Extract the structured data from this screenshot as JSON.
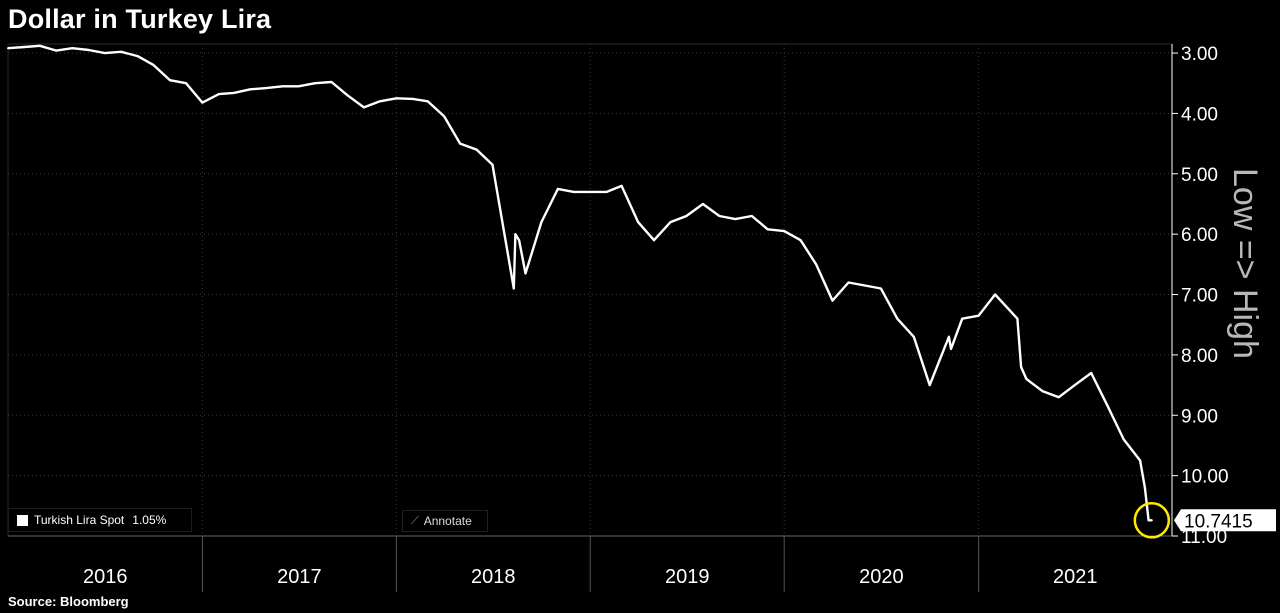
{
  "chart_data": {
    "type": "line",
    "title": "Dollar in Turkey Lira",
    "source": "Source: Bloomberg",
    "series": [
      {
        "name": "Turkish Lira Spot",
        "change": "1.05%",
        "last_value_label": "10.7415",
        "x": [
          "2016-01",
          "2016-02",
          "2016-03",
          "2016-04",
          "2016-05",
          "2016-06",
          "2016-07",
          "2016-08",
          "2016-09",
          "2016-10",
          "2016-11",
          "2016-12",
          "2017-01",
          "2017-02",
          "2017-03",
          "2017-04",
          "2017-05",
          "2017-06",
          "2017-07",
          "2017-08",
          "2017-09",
          "2017-10",
          "2017-11",
          "2017-12",
          "2018-01",
          "2018-02",
          "2018-03",
          "2018-04",
          "2018-05",
          "2018-06",
          "2018-07",
          "2018-08-10",
          "2018-08-13",
          "2018-08-20",
          "2018-09",
          "2018-10",
          "2018-11",
          "2018-12",
          "2019-01",
          "2019-02",
          "2019-03",
          "2019-04",
          "2019-05",
          "2019-06",
          "2019-07",
          "2019-08",
          "2019-09",
          "2019-10",
          "2019-11",
          "2019-12",
          "2020-01",
          "2020-02",
          "2020-03",
          "2020-04",
          "2020-05",
          "2020-06",
          "2020-07",
          "2020-08",
          "2020-09",
          "2020-10",
          "2020-11-06",
          "2020-11-10",
          "2020-12",
          "2021-01",
          "2021-02",
          "2021-03-15",
          "2021-03-22",
          "2021-04",
          "2021-05",
          "2021-06",
          "2021-07",
          "2021-08",
          "2021-09",
          "2021-10",
          "2021-11-01",
          "2021-11-10",
          "2021-11-17",
          "2021-11-23"
        ],
        "values": [
          2.92,
          2.9,
          2.88,
          2.96,
          2.92,
          2.95,
          3.0,
          2.98,
          3.05,
          3.2,
          3.45,
          3.5,
          3.82,
          3.68,
          3.66,
          3.6,
          3.58,
          3.55,
          3.55,
          3.5,
          3.48,
          3.7,
          3.9,
          3.8,
          3.75,
          3.76,
          3.8,
          4.05,
          4.5,
          4.6,
          4.85,
          6.9,
          6.0,
          6.1,
          6.65,
          5.8,
          5.25,
          5.3,
          5.3,
          5.3,
          5.2,
          5.8,
          6.1,
          5.8,
          5.7,
          5.5,
          5.7,
          5.75,
          5.7,
          5.92,
          5.95,
          6.1,
          6.5,
          7.1,
          6.8,
          6.85,
          6.9,
          7.4,
          7.7,
          8.5,
          7.7,
          7.9,
          7.4,
          7.35,
          7.0,
          7.4,
          8.2,
          8.4,
          8.6,
          8.7,
          8.5,
          8.3,
          8.85,
          9.4,
          9.75,
          10.2,
          10.74,
          10.74
        ]
      }
    ],
    "y_axis": {
      "label": "Low => High",
      "inverted": true,
      "range": [
        2.85,
        11.0
      ],
      "ticks": [
        "3.00",
        "4.00",
        "5.00",
        "6.00",
        "7.00",
        "8.00",
        "9.00",
        "10.00",
        "11.00"
      ]
    },
    "x_axis": {
      "years": [
        "2016",
        "2017",
        "2018",
        "2019",
        "2020",
        "2021"
      ],
      "range": [
        "2016-01-01",
        "2021-12-31"
      ]
    },
    "grid": true,
    "annotation": {
      "type": "circle",
      "color": "#ffea00"
    }
  },
  "ui": {
    "annotate_label": "Annotate",
    "annotate_icon": "pencil-icon"
  }
}
